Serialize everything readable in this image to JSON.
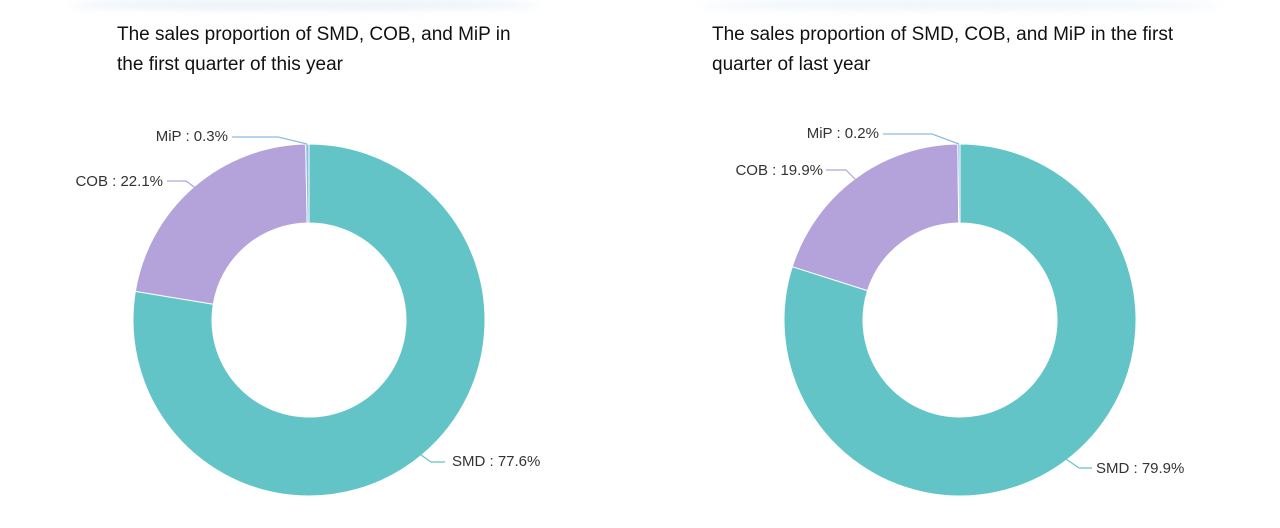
{
  "chart_data": [
    {
      "type": "pie",
      "title": "The sales proportion of SMD, COB, and MiP in the first quarter of this year",
      "slices": [
        {
          "name": "SMD",
          "value": 77.6,
          "label": "SMD : 77.6%",
          "color": "#63c4c7"
        },
        {
          "name": "COB",
          "value": 22.1,
          "label": "COB : 22.1%",
          "color": "#b4a3da"
        },
        {
          "name": "MiP",
          "value": 0.3,
          "label": "MiP : 0.3%",
          "color": "#8dbbe3"
        }
      ]
    },
    {
      "type": "pie",
      "title": "The sales proportion of SMD, COB, and MiP in the first quarter of last year",
      "slices": [
        {
          "name": "SMD",
          "value": 79.9,
          "label": "SMD : 79.9%",
          "color": "#63c4c7"
        },
        {
          "name": "COB",
          "value": 19.9,
          "label": "COB : 19.9%",
          "color": "#b4a3da"
        },
        {
          "name": "MiP",
          "value": 0.2,
          "label": "MiP : 0.2%",
          "color": "#8dbbe3"
        }
      ]
    }
  ]
}
